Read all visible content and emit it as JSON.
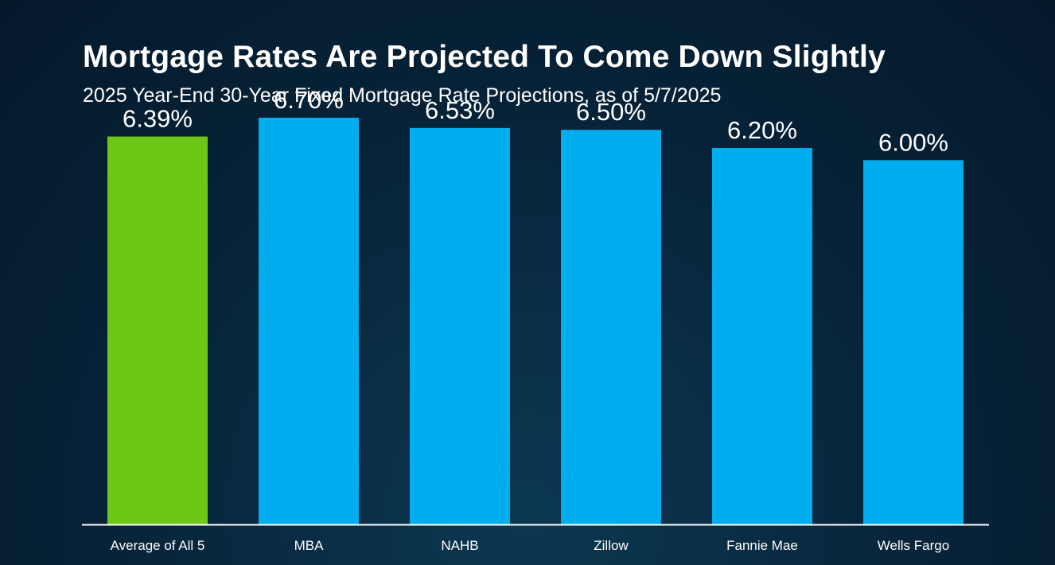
{
  "header": {
    "title": "Mortgage Rates Are Projected To Come Down Slightly",
    "subtitle": "2025 Year-End 30-Year Fixed Mortgage Rate Projections, as of 5/7/2025"
  },
  "chart_data": {
    "type": "bar",
    "title": "Mortgage Rates Are Projected To Come Down Slightly",
    "subtitle": "2025 Year-End 30-Year Fixed Mortgage Rate Projections, as of 5/7/2025",
    "categories": [
      "Average of All 5",
      "MBA",
      "NAHB",
      "Zillow",
      "Fannie Mae",
      "Wells Fargo"
    ],
    "values": [
      6.39,
      6.7,
      6.53,
      6.5,
      6.2,
      6.0
    ],
    "value_labels": [
      "6.39%",
      "6.70%",
      "6.53%",
      "6.50%",
      "6.20%",
      "6.00%"
    ],
    "bar_colors": [
      "#6cc814",
      "#00adef",
      "#00adef",
      "#00adef",
      "#00adef",
      "#00adef"
    ],
    "ylim": [
      0,
      7.8
    ],
    "xlabel": "",
    "ylabel": "",
    "grid": false,
    "legend": "none"
  },
  "colors": {
    "highlight_bar": "#6cc814",
    "bar": "#00adef",
    "baseline": "#ffffff",
    "text": "#ffffff"
  }
}
